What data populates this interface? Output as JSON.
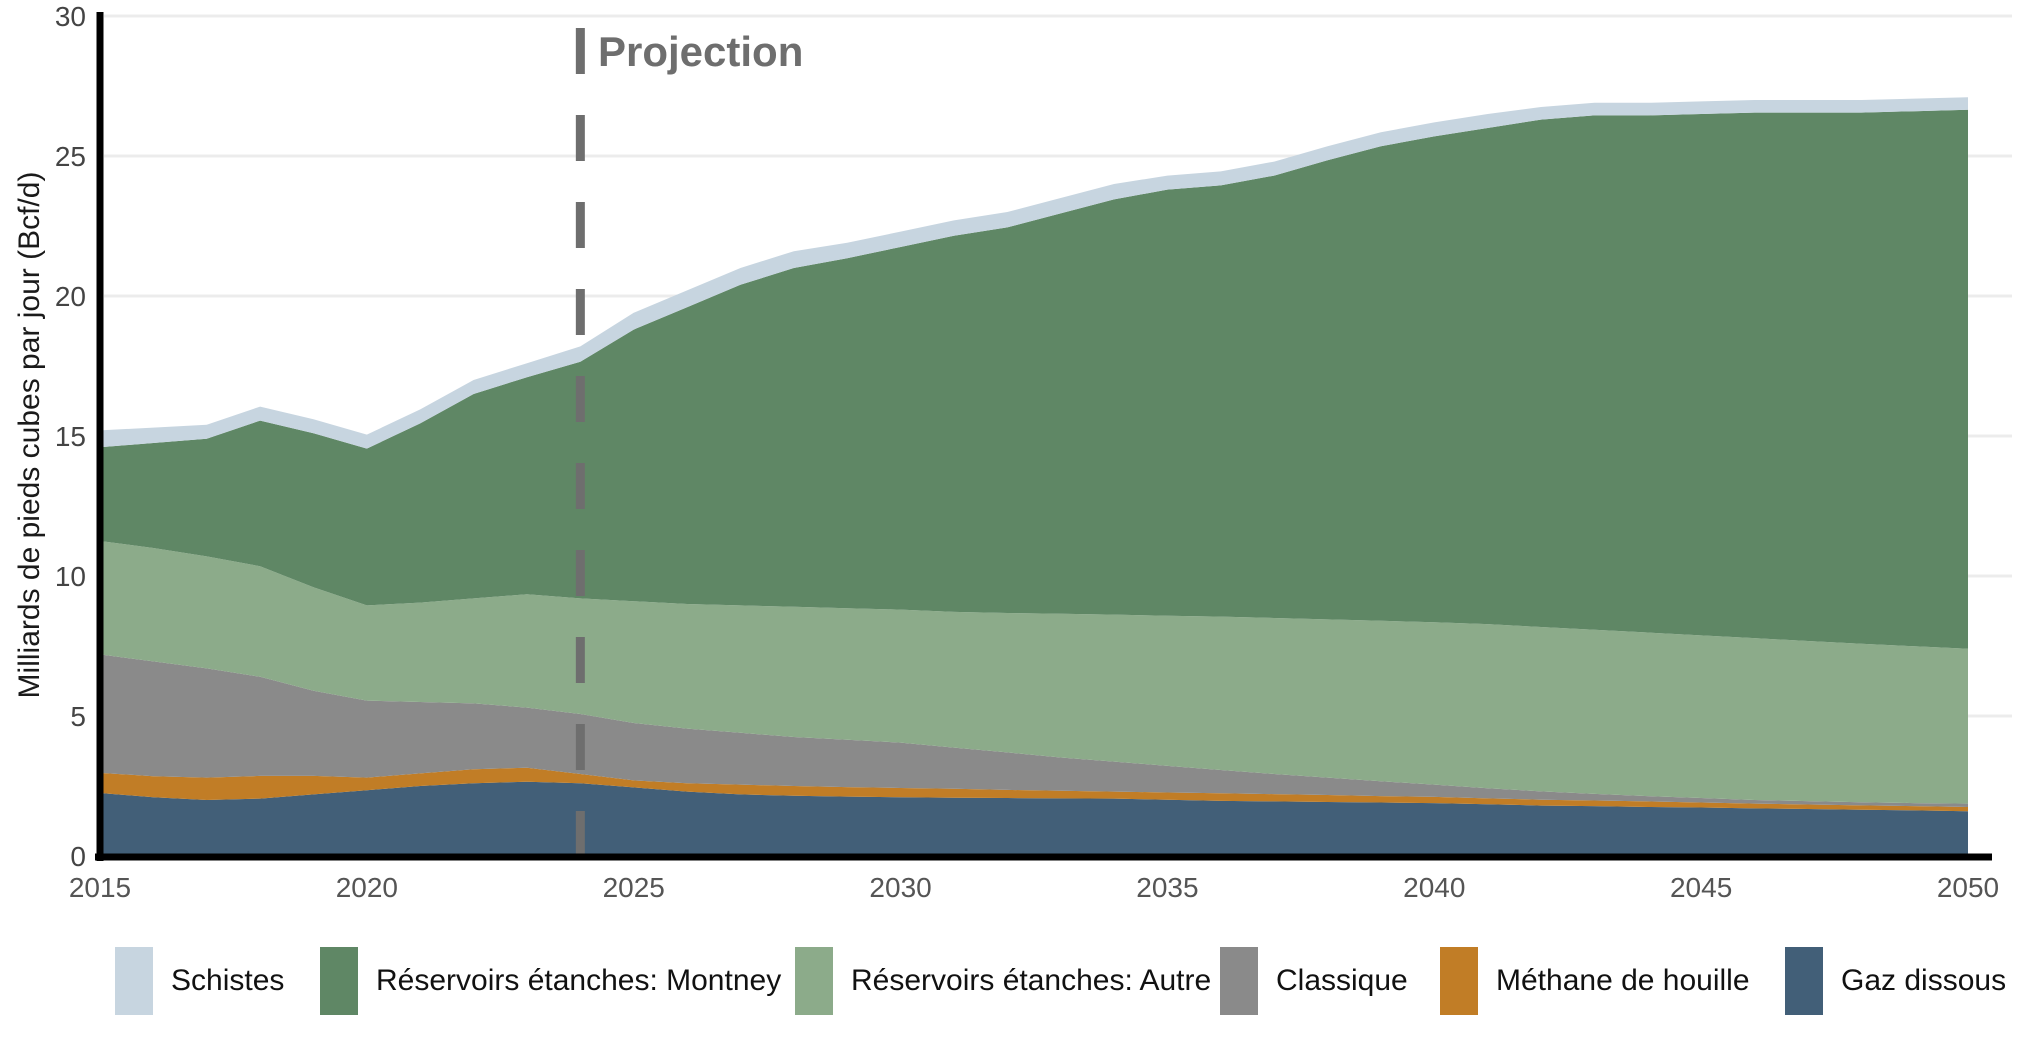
{
  "chart_data": {
    "type": "area",
    "stacked": true,
    "title": "",
    "ylabel": "Milliards de pieds cubes par jour (Bcf/d)",
    "xlabel": "",
    "ylim": [
      0,
      30
    ],
    "xlim": [
      2015,
      2050
    ],
    "grid": "horizontal",
    "legend_position": "bottom",
    "y_ticks": [
      0,
      5,
      10,
      15,
      20,
      25,
      30
    ],
    "x_ticks": [
      2015,
      2020,
      2025,
      2030,
      2035,
      2040,
      2045,
      2050
    ],
    "projection": {
      "label": "Projection",
      "year": 2024
    },
    "years": [
      2015,
      2016,
      2017,
      2018,
      2019,
      2020,
      2021,
      2022,
      2023,
      2024,
      2025,
      2026,
      2027,
      2028,
      2029,
      2030,
      2031,
      2032,
      2033,
      2034,
      2035,
      2036,
      2037,
      2038,
      2039,
      2040,
      2041,
      2042,
      2043,
      2044,
      2045,
      2046,
      2047,
      2048,
      2049,
      2050
    ],
    "series": [
      {
        "name": "Gaz dissous",
        "color": "#425f78",
        "values": [
          2.25,
          2.1,
          2.0,
          2.05,
          2.2,
          2.35,
          2.5,
          2.6,
          2.65,
          2.6,
          2.45,
          2.3,
          2.2,
          2.15,
          2.12,
          2.1,
          2.08,
          2.07,
          2.06,
          2.05,
          2.01,
          1.97,
          1.95,
          1.93,
          1.91,
          1.89,
          1.85,
          1.8,
          1.78,
          1.75,
          1.73,
          1.7,
          1.68,
          1.65,
          1.63,
          1.6
        ]
      },
      {
        "name": "Méthane de houille",
        "color": "#c17d26",
        "values": [
          0.72,
          0.75,
          0.8,
          0.81,
          0.66,
          0.45,
          0.45,
          0.5,
          0.5,
          0.33,
          0.25,
          0.3,
          0.35,
          0.35,
          0.34,
          0.33,
          0.32,
          0.29,
          0.27,
          0.25,
          0.26,
          0.27,
          0.26,
          0.25,
          0.23,
          0.22,
          0.21,
          0.21,
          0.2,
          0.2,
          0.18,
          0.17,
          0.16,
          0.16,
          0.15,
          0.15
        ]
      },
      {
        "name": "Classique",
        "color": "#8a8a8a",
        "values": [
          4.23,
          4.1,
          3.9,
          3.54,
          3.04,
          2.75,
          2.55,
          2.35,
          2.15,
          2.14,
          2.05,
          1.95,
          1.85,
          1.75,
          1.69,
          1.62,
          1.47,
          1.34,
          1.19,
          1.07,
          0.95,
          0.83,
          0.72,
          0.62,
          0.53,
          0.44,
          0.36,
          0.3,
          0.24,
          0.19,
          0.16,
          0.13,
          0.12,
          0.11,
          0.11,
          0.12
        ]
      },
      {
        "name": "Réservoirs étanches: Autre",
        "color": "#8cab8a",
        "values": [
          4.05,
          4.05,
          4.0,
          3.95,
          3.7,
          3.4,
          3.55,
          3.75,
          4.05,
          4.13,
          4.35,
          4.45,
          4.55,
          4.65,
          4.7,
          4.75,
          4.85,
          4.98,
          5.13,
          5.25,
          5.36,
          5.48,
          5.57,
          5.65,
          5.73,
          5.8,
          5.86,
          5.87,
          5.86,
          5.84,
          5.81,
          5.78,
          5.72,
          5.66,
          5.6,
          5.53
        ]
      },
      {
        "name": "Réservoirs étanches: Montney",
        "color": "#5f8765",
        "values": [
          3.35,
          3.75,
          4.2,
          5.2,
          5.5,
          5.6,
          6.4,
          7.3,
          7.75,
          8.45,
          9.7,
          10.6,
          11.45,
          12.1,
          12.5,
          12.95,
          13.43,
          13.77,
          14.3,
          14.83,
          15.22,
          15.4,
          15.8,
          16.4,
          16.95,
          17.35,
          17.72,
          18.12,
          18.37,
          18.47,
          18.62,
          18.77,
          18.87,
          18.97,
          19.11,
          19.25
        ]
      },
      {
        "name": "Schistes",
        "color": "#c7d5e0",
        "values": [
          0.6,
          0.55,
          0.5,
          0.5,
          0.5,
          0.5,
          0.5,
          0.5,
          0.5,
          0.55,
          0.6,
          0.6,
          0.6,
          0.6,
          0.55,
          0.55,
          0.55,
          0.55,
          0.55,
          0.55,
          0.5,
          0.5,
          0.5,
          0.5,
          0.5,
          0.5,
          0.5,
          0.45,
          0.45,
          0.45,
          0.45,
          0.45,
          0.45,
          0.45,
          0.45,
          0.45
        ]
      }
    ],
    "colors": {
      "grid": "#ececec",
      "axis": "#000000",
      "y_tick_text": "#444444",
      "x_tick_text": "#555555",
      "projection": "#6e6e6e"
    }
  },
  "legend": {
    "items": [
      {
        "label": "Schistes",
        "color": "#c7d5e0"
      },
      {
        "label": "Réservoirs étanches: Montney",
        "color": "#5f8765"
      },
      {
        "label": "Réservoirs étanches: Autre",
        "color": "#8cab8a"
      },
      {
        "label": "Classique",
        "color": "#8a8a8a"
      },
      {
        "label": "Méthane de houille",
        "color": "#c17d26"
      },
      {
        "label": "Gaz dissous",
        "color": "#425f78"
      }
    ]
  }
}
